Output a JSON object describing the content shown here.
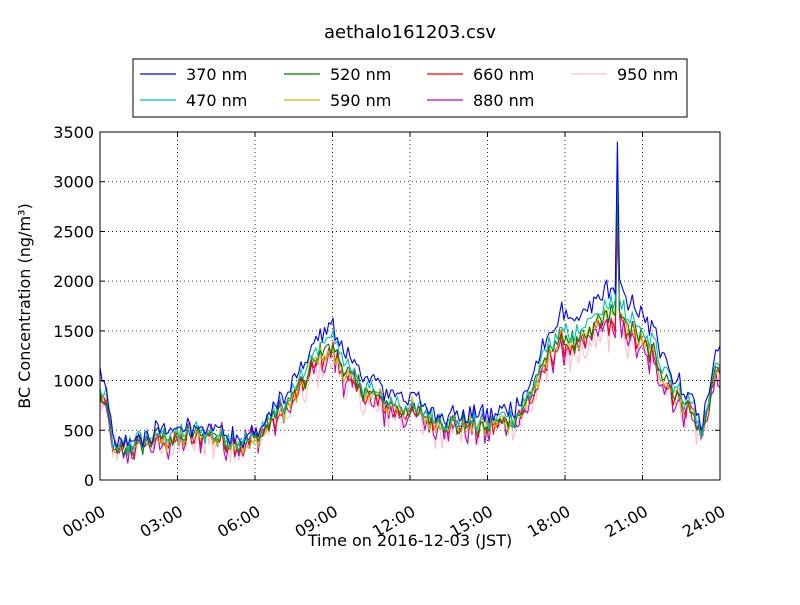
{
  "chart_data": {
    "type": "line",
    "title": "aethalo161203.csv",
    "xlabel": "Time on 2016-12-03 (JST)",
    "ylabel": "BC Concentration (ng/m³)",
    "xlim": [
      0,
      24
    ],
    "ylim": [
      0,
      3500
    ],
    "grid": true,
    "legend_position": "top-center",
    "x_tick_labels": [
      "00:00",
      "03:00",
      "06:00",
      "09:00",
      "12:00",
      "15:00",
      "18:00",
      "21:00",
      "24:00"
    ],
    "y_tick_labels": [
      "0",
      "500",
      "1000",
      "1500",
      "2000",
      "2500",
      "3000",
      "3500"
    ],
    "series": [
      {
        "name": "370 nm",
        "color": "#0000ff",
        "scale": 1.16,
        "noise": 110,
        "peak": 3400
      },
      {
        "name": "470 nm",
        "color": "#00bfae",
        "scale": 1.06,
        "noise": 110,
        "peak": 3300
      },
      {
        "name": "520 nm",
        "color": "#008000",
        "scale": 1.0,
        "noise": 110,
        "peak": 3000
      },
      {
        "name": "590 nm",
        "color": "#bfbf00",
        "scale": 0.98,
        "noise": 120,
        "peak": 3050
      },
      {
        "name": "660 nm",
        "color": "#ff0000",
        "scale": 0.96,
        "noise": 120,
        "peak": 2700
      },
      {
        "name": "880 nm",
        "color": "#bf00bf",
        "scale": 0.93,
        "noise": 170,
        "peak": 2600
      },
      {
        "name": "950 nm",
        "color": "#ffc0cb",
        "scale": 0.9,
        "noise": 190,
        "peak": 2700
      }
    ],
    "baseline_profile": {
      "hours": [
        0,
        0.25,
        0.6,
        1.0,
        2.0,
        3.0,
        4.0,
        5.0,
        5.5,
        6.0,
        7.0,
        7.5,
        8.0,
        8.5,
        9.0,
        9.5,
        10.0,
        11.0,
        12.0,
        13.0,
        14.0,
        15.0,
        16.0,
        16.5,
        17.0,
        17.5,
        18.0,
        18.5,
        19.0,
        19.5,
        20.0,
        20.5,
        21.0,
        21.5,
        22.0,
        22.5,
        23.0,
        23.3,
        23.6,
        24.0
      ],
      "values": [
        900,
        750,
        250,
        330,
        400,
        430,
        460,
        420,
        350,
        430,
        700,
        850,
        1050,
        1300,
        1330,
        1100,
        950,
        780,
        700,
        600,
        560,
        560,
        620,
        780,
        1050,
        1350,
        1450,
        1350,
        1500,
        1650,
        1700,
        1550,
        1400,
        1250,
        1000,
        800,
        700,
        430,
        850,
        1200
      ]
    }
  }
}
